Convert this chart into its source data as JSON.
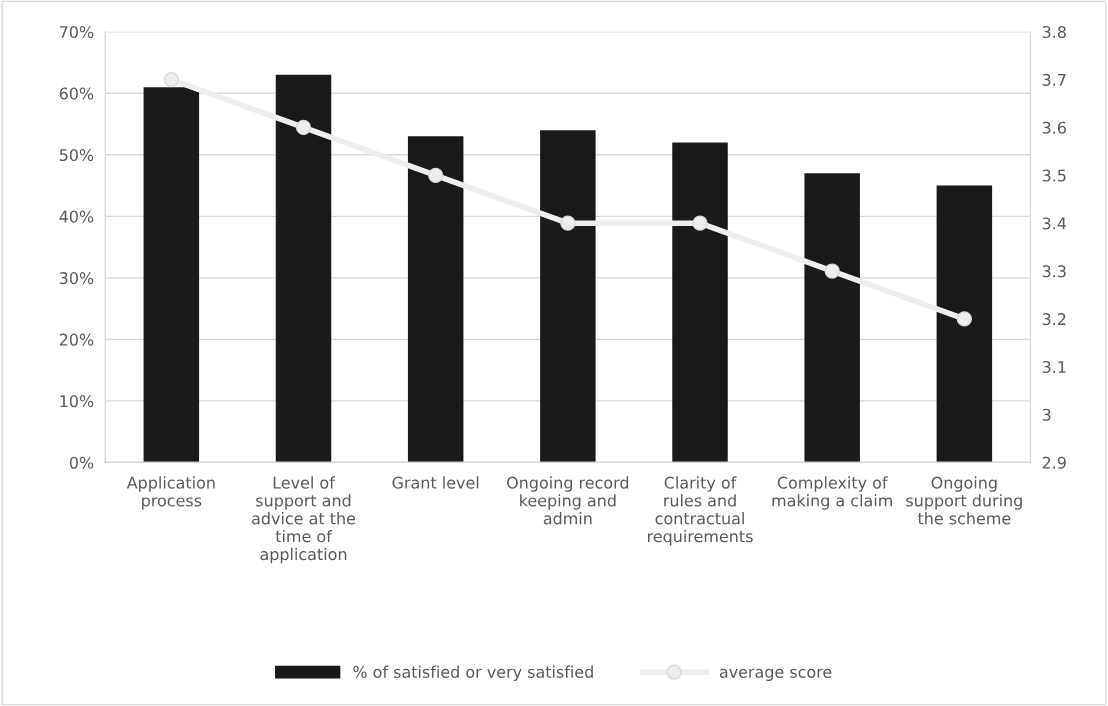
{
  "chart_data": {
    "type": "bar",
    "categories": [
      "Application process",
      "Level of support and advice at the time of application",
      "Grant level",
      "Ongoing record keeping and admin",
      "Clarity of rules and contractual requirements",
      "Complexity of making a claim",
      "Ongoing support during the scheme"
    ],
    "series": [
      {
        "name": "% of satisfied or very satisfied",
        "color": "#1a1a1a",
        "values": [
          61,
          63,
          53,
          54,
          52,
          47,
          45
        ]
      },
      {
        "name": "average score",
        "type": "line",
        "axis": "y2",
        "color": "#eeeeee",
        "marker": "circle",
        "values": [
          3.7,
          3.6,
          3.5,
          3.4,
          3.4,
          3.3,
          3.2
        ]
      }
    ],
    "ylim": [
      0,
      70
    ],
    "yticks": [
      {
        "value": 0,
        "label": "0%"
      },
      {
        "value": 10,
        "label": "10%"
      },
      {
        "value": 20,
        "label": "20%"
      },
      {
        "value": 30,
        "label": "30%"
      },
      {
        "value": 40,
        "label": "40%"
      },
      {
        "value": 50,
        "label": "50%"
      },
      {
        "value": 60,
        "label": "60%"
      },
      {
        "value": 70,
        "label": "70%"
      }
    ],
    "y2lim": [
      2.9,
      3.8
    ],
    "y2ticks": [
      2.9,
      3,
      3.1,
      3.2,
      3.3,
      3.4,
      3.5,
      3.6,
      3.7,
      3.8
    ],
    "grid": "y",
    "legend": "bottom"
  }
}
